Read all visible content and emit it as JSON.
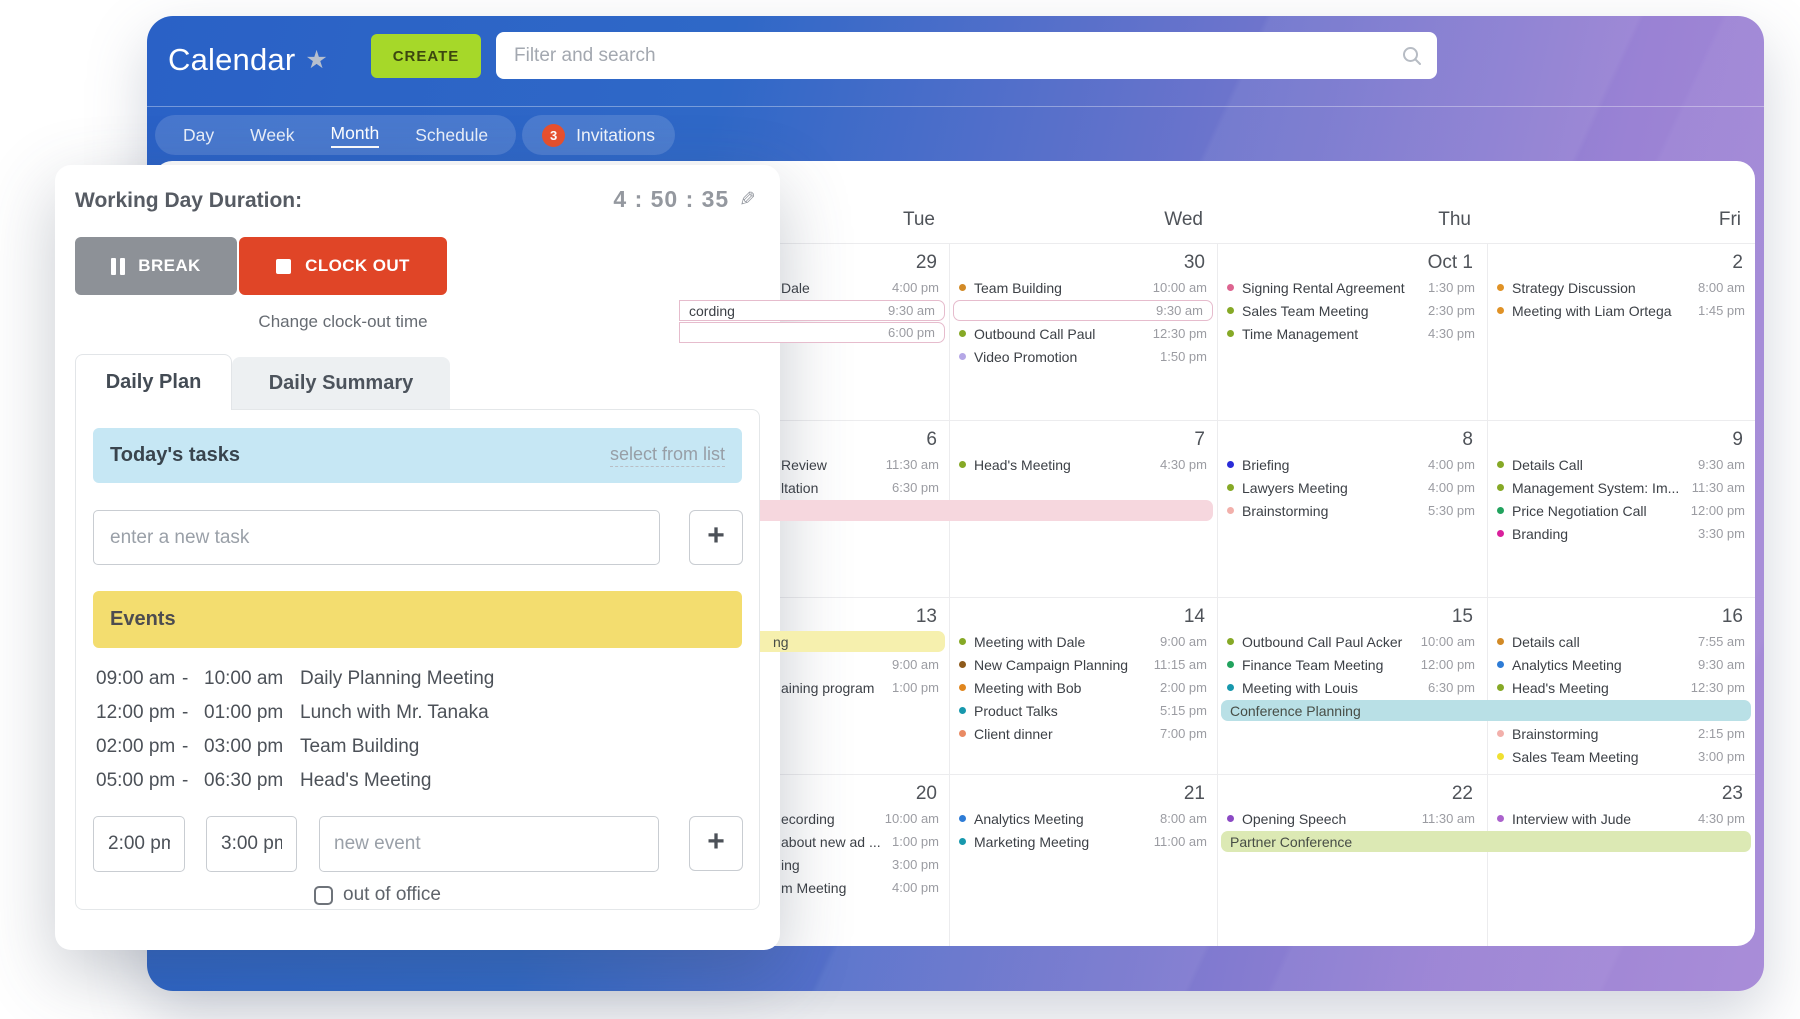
{
  "header": {
    "title": "Calendar",
    "create_label": "CREATE",
    "search_placeholder": "Filter and search",
    "view_tabs": [
      "Day",
      "Week",
      "Month",
      "Schedule"
    ],
    "active_view": "Month",
    "invitations": {
      "count": "3",
      "label": "Invitations"
    }
  },
  "tracker": {
    "duration_label": "Working Day Duration:",
    "timer": "4 : 50 : 35",
    "break_label": "BREAK",
    "clock_out_label": "CLOCK OUT",
    "change_link": "Change clock-out time",
    "tabs": {
      "plan": "Daily Plan",
      "summary": "Daily Summary"
    },
    "tasks": {
      "header": "Today's tasks",
      "select_link": "select from list",
      "input_placeholder": "enter a new task",
      "add_label": "+"
    },
    "events": {
      "header": "Events",
      "items": [
        {
          "start": "09:00 am",
          "end": "10:00 am",
          "title": "Daily Planning Meeting"
        },
        {
          "start": "12:00 pm",
          "end": "01:00 pm",
          "title": "Lunch with Mr. Tanaka"
        },
        {
          "start": "02:00 pm",
          "end": "03:00 pm",
          "title": "Team Building"
        },
        {
          "start": "05:00 pm",
          "end": "06:30 pm",
          "title": "Head's Meeting"
        }
      ],
      "new_event": {
        "start_value": "2:00 pm",
        "end_value": "3:00 pm",
        "title_placeholder": "new event"
      },
      "add_label": "+"
    },
    "out_of_office_label": "out of office"
  },
  "calendar": {
    "day_headers": [
      "Tue",
      "Wed",
      "Thu",
      "Fri"
    ],
    "weeks": [
      [
        {
          "date": "29",
          "events": [
            {
              "kind": "plain",
              "title": "Dale",
              "time": "4:00 pm",
              "occluded": true
            },
            {
              "kind": "outline",
              "title": "cording",
              "time": "9:30 am",
              "ext": "left",
              "occluded": true
            },
            {
              "kind": "outline",
              "title": "",
              "time": "6:00 pm",
              "ext": "left"
            }
          ]
        },
        {
          "date": "30",
          "events": [
            {
              "kind": "dot",
              "color": "#d28a26",
              "title": "Team Building",
              "time": "10:00 am"
            },
            {
              "kind": "outline",
              "title": "",
              "time": "9:30 am"
            },
            {
              "kind": "dot",
              "color": "#86a926",
              "title": "Outbound Call Paul",
              "time": "12:30 pm"
            },
            {
              "kind": "dot",
              "color": "#b5a7e6",
              "title": "Video Promotion",
              "time": "1:50 pm"
            }
          ]
        },
        {
          "date": "Oct 1",
          "events": [
            {
              "kind": "dot",
              "color": "#dd6490",
              "title": "Signing Rental Agreement",
              "time": "1:30 pm"
            },
            {
              "kind": "dot",
              "color": "#86a926",
              "title": "Sales Team Meeting",
              "time": "2:30 pm"
            },
            {
              "kind": "dot",
              "color": "#86a926",
              "title": "Time Management",
              "time": "4:30 pm"
            }
          ]
        },
        {
          "date": "2",
          "events": [
            {
              "kind": "dot",
              "color": "#e09226",
              "title": "Strategy Discussion",
              "time": "8:00 am"
            },
            {
              "kind": "dot",
              "color": "#e09226",
              "title": "Meeting with Liam Ortega",
              "time": "1:45 pm"
            }
          ]
        }
      ],
      [
        {
          "date": "6",
          "events": [
            {
              "kind": "plain",
              "title": "Review",
              "time": "11:30 am",
              "occluded": true
            },
            {
              "kind": "plain",
              "title": "ltation",
              "time": "6:30 pm",
              "occluded": true
            },
            {
              "kind": "solid",
              "bg": "#f6d7de",
              "ext": "both"
            }
          ]
        },
        {
          "date": "7",
          "events": [
            {
              "kind": "dot",
              "color": "#86a926",
              "title": "Head's Meeting",
              "time": "4:30 pm"
            },
            {
              "kind": "spacer"
            },
            {
              "kind": "solid",
              "bg": "#f6d7de",
              "ext": "left"
            }
          ]
        },
        {
          "date": "8",
          "events": [
            {
              "kind": "dot",
              "color": "#2a2cd8",
              "title": "Briefing",
              "time": "4:00 pm"
            },
            {
              "kind": "dot",
              "color": "#86a926",
              "title": "Lawyers Meeting",
              "time": "4:00 pm"
            },
            {
              "kind": "dot",
              "color": "#f2b0ab",
              "title": "Brainstorming",
              "time": "5:30 pm"
            }
          ]
        },
        {
          "date": "9",
          "events": [
            {
              "kind": "dot",
              "color": "#86a926",
              "title": "Details Call",
              "time": "9:30 am"
            },
            {
              "kind": "dot",
              "color": "#86a926",
              "title": "Management System: Im...",
              "time": "11:30 am"
            },
            {
              "kind": "dot",
              "color": "#22a35e",
              "title": "Price Negotiation Call",
              "time": "12:00 pm"
            },
            {
              "kind": "dot",
              "color": "#d9209c",
              "title": "Branding",
              "time": "3:30 pm"
            }
          ]
        }
      ],
      [
        {
          "date": "13",
          "events": [
            {
              "kind": "banner",
              "text": "ng",
              "bg": "#f6f0ae",
              "ext": "left",
              "occluded": true
            },
            {
              "kind": "plain",
              "title": "",
              "time": "9:00 am"
            },
            {
              "kind": "plain",
              "title": "aining program",
              "time": "1:00 pm",
              "occluded": true
            }
          ]
        },
        {
          "date": "14",
          "events": [
            {
              "kind": "dot",
              "color": "#86a926",
              "title": "Meeting with Dale",
              "time": "9:00 am"
            },
            {
              "kind": "dot",
              "color": "#8d5a1c",
              "title": "New Campaign Planning",
              "time": "11:15 am"
            },
            {
              "kind": "dot",
              "color": "#e0861e",
              "title": "Meeting with Bob",
              "time": "2:00 pm"
            },
            {
              "kind": "dot",
              "color": "#1798ad",
              "title": "Product Talks",
              "time": "5:15 pm"
            },
            {
              "kind": "dot",
              "color": "#e98a63",
              "title": "Client dinner",
              "time": "7:00 pm"
            }
          ]
        },
        {
          "date": "15",
          "events": [
            {
              "kind": "dot",
              "color": "#86a926",
              "title": "Outbound Call Paul Acker",
              "time": "10:00 am"
            },
            {
              "kind": "dot",
              "color": "#22a35e",
              "title": "Finance Team Meeting",
              "time": "12:00 pm"
            },
            {
              "kind": "dot",
              "color": "#1798ad",
              "title": "Meeting with Louis",
              "time": "6:30 pm"
            },
            {
              "kind": "banner",
              "text": "Conference Planning",
              "bg": "#b9e0e6",
              "ext": "right"
            }
          ]
        },
        {
          "date": "16",
          "events": [
            {
              "kind": "dot",
              "color": "#d28a26",
              "title": "Details call",
              "time": "7:55 am"
            },
            {
              "kind": "dot",
              "color": "#2e7cd6",
              "title": "Analytics Meeting",
              "time": "9:30 am"
            },
            {
              "kind": "dot",
              "color": "#86a926",
              "title": "Head's Meeting",
              "time": "12:30 pm"
            },
            {
              "kind": "banner",
              "text": "",
              "bg": "#b9e0e6",
              "ext": "left"
            },
            {
              "kind": "dot",
              "color": "#f2b0ab",
              "title": "Brainstorming",
              "time": "2:15 pm"
            },
            {
              "kind": "dot",
              "color": "#f0e032",
              "title": "Sales Team Meeting",
              "time": "3:00 pm"
            }
          ]
        }
      ],
      [
        {
          "date": "20",
          "events": [
            {
              "kind": "plain",
              "title": "ecording",
              "time": "10:00 am",
              "occluded": true
            },
            {
              "kind": "plain",
              "title": "about new ad ...",
              "time": "1:00 pm",
              "occluded": true
            },
            {
              "kind": "plain",
              "title": "ing",
              "time": "3:00 pm",
              "occluded": true
            },
            {
              "kind": "plain",
              "title": "m Meeting",
              "time": "4:00 pm",
              "occluded": true
            }
          ]
        },
        {
          "date": "21",
          "events": [
            {
              "kind": "dot",
              "color": "#2e7cd6",
              "title": "Analytics Meeting",
              "time": "8:00 am"
            },
            {
              "kind": "dot",
              "color": "#1798ad",
              "title": "Marketing Meeting",
              "time": "11:00 am"
            }
          ]
        },
        {
          "date": "22",
          "events": [
            {
              "kind": "dot",
              "color": "#8b49c4",
              "title": "Opening Speech",
              "time": "11:30 am"
            },
            {
              "kind": "banner",
              "text": "Partner Conference",
              "bg": "#dce9b4",
              "ext": "right"
            }
          ]
        },
        {
          "date": "23",
          "events": [
            {
              "kind": "dot",
              "color": "#ab62cc",
              "title": "Interview with Jude",
              "time": "4:30 pm"
            },
            {
              "kind": "banner",
              "text": "",
              "bg": "#dce9b4",
              "ext": "left"
            }
          ]
        }
      ]
    ]
  },
  "colors": {
    "create_green": "#a6d829",
    "clock_out_red": "#e04527",
    "break_gray": "#8d9197",
    "badge_red": "#e8502e",
    "tasks_header_blue": "#c6e7f4",
    "events_header_yellow": "#f3dd6f",
    "band_pink_outline": "#e6bccd",
    "band_pink_solid": "#f6d7de",
    "band_yellow": "#f6f0ae",
    "band_cyan": "#b9e0e6",
    "band_green": "#dce9b4",
    "gradient_blue": "#2a61c6",
    "gradient_purple": "#a98dd8"
  }
}
